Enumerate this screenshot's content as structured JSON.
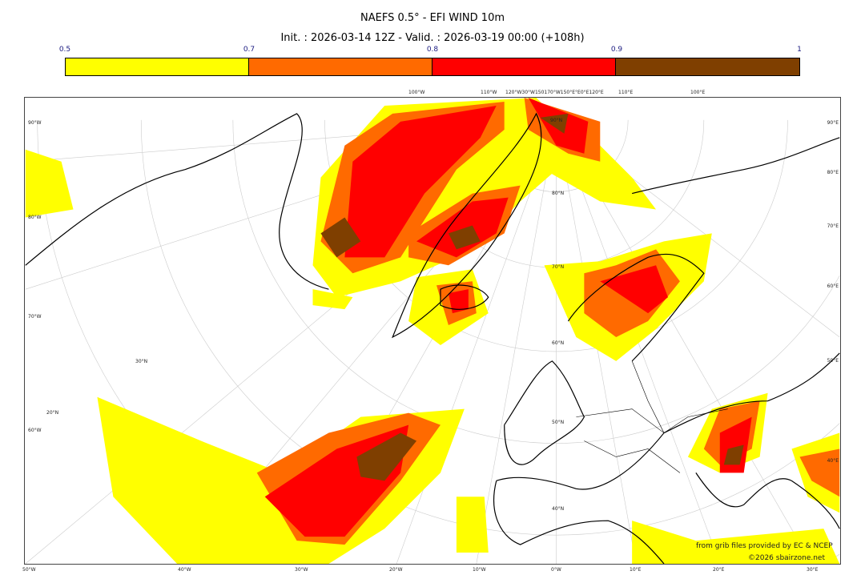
{
  "title": "NAEFS 0.5° - EFI WIND 10m",
  "subtitle": "Init. : 2026-03-14 12Z - Valid. : 2026-03-19 00:00 (+108h)",
  "colorbar": {
    "ticks": [
      "0.5",
      "0.7",
      "0.8",
      "0.9",
      "1"
    ],
    "bins": [
      {
        "from": 0.5,
        "to": 0.7,
        "color": "#ffff00"
      },
      {
        "from": 0.7,
        "to": 0.8,
        "color": "#ff6a00"
      },
      {
        "from": 0.8,
        "to": 0.9,
        "color": "#ff0000"
      },
      {
        "from": 0.9,
        "to": 1.0,
        "color": "#7f3f00"
      }
    ]
  },
  "axes": {
    "left": [
      "90°W",
      "80°W",
      "70°W",
      "60°W"
    ],
    "right": [
      "90°E",
      "80°E",
      "70°E",
      "60°E",
      "50°E",
      "40°E"
    ],
    "bottom": [
      "50°W",
      "40°W",
      "30°W",
      "20°W",
      "10°W",
      "0°W",
      "10°E",
      "20°E",
      "30°E"
    ],
    "top": [
      "100°W",
      "110°W",
      "120°W30°W150170°W150°E°E0°E120°E",
      "110°E",
      "100°E"
    ],
    "lat_labels": [
      "90°N",
      "80°N",
      "70°N",
      "60°N",
      "50°N",
      "40°N",
      "30°N",
      "20°N"
    ]
  },
  "credits": {
    "source": "from grib files provided by EC & NCEP",
    "copyright": "©2026 sbairzone.net"
  }
}
